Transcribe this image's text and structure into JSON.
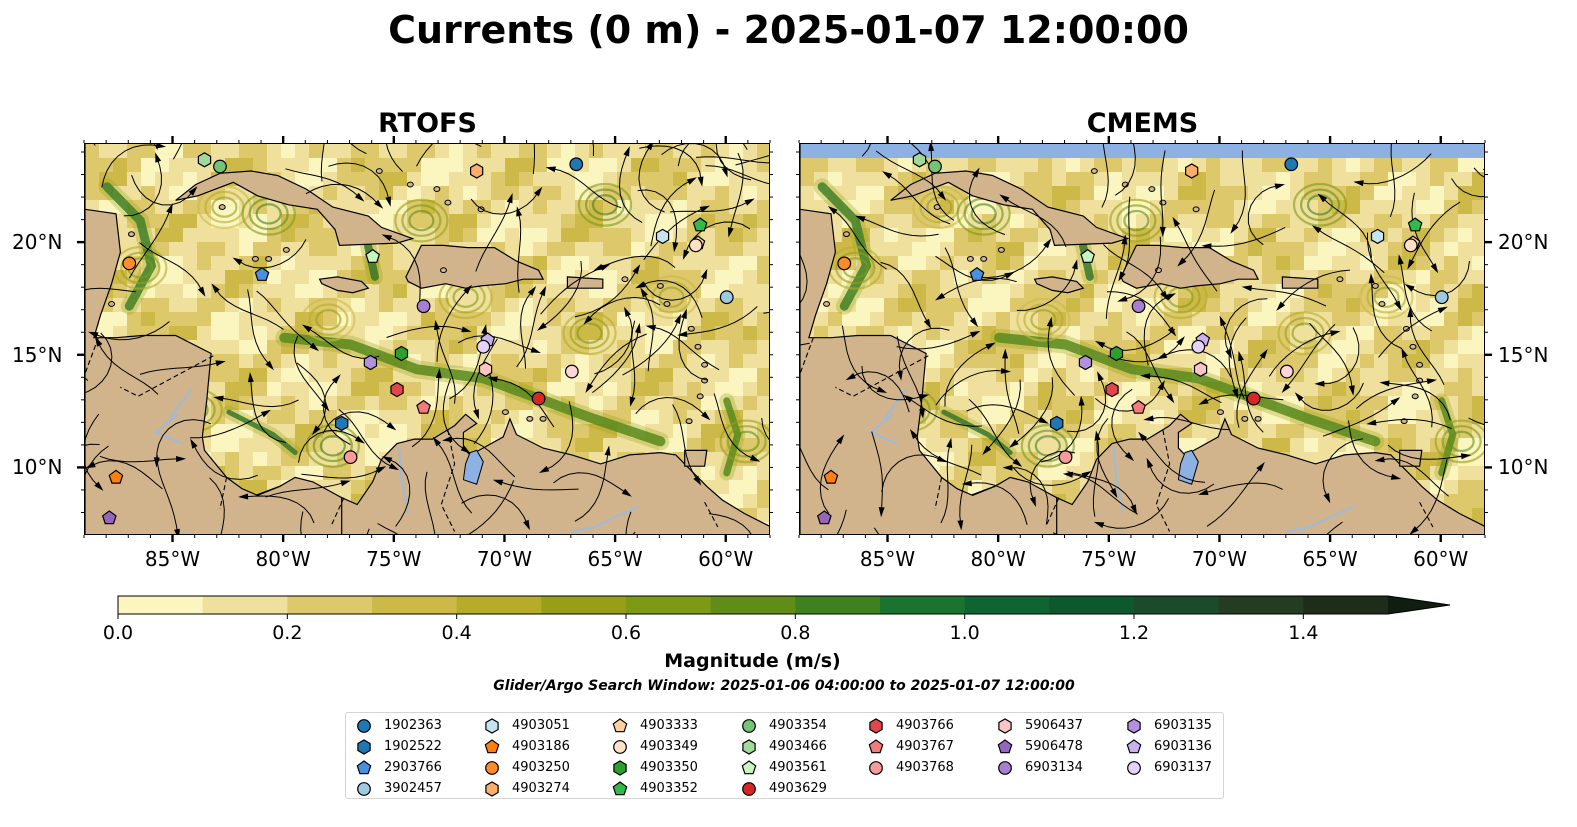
{
  "title": "Currents (0 m) - 2025-01-07 12:00:00",
  "panels": [
    {
      "title": "RTOFS",
      "key": "rtofs"
    },
    {
      "title": "CMEMS",
      "key": "cmems"
    }
  ],
  "axes": {
    "lon_labels": [
      "85°W",
      "80°W",
      "75°W",
      "70°W",
      "65°W",
      "60°W"
    ],
    "lon_values": [
      -85,
      -80,
      -75,
      -70,
      -65,
      -60
    ],
    "lat_labels": [
      "20°N",
      "15°N",
      "10°N"
    ],
    "lat_values": [
      20,
      15,
      10
    ],
    "lon_range": [
      -89,
      -58
    ],
    "lat_range": [
      7,
      24.4
    ]
  },
  "colors": {
    "land": "#d1b48c",
    "water_body": "#8eb1e3",
    "rivers": "#9fb9d8",
    "cmems_nodata": "#8eb1e3",
    "streamlines": "#000000"
  },
  "colorbar": {
    "label": "Magnitude (m/s)",
    "ticks": [
      "0.0",
      "0.2",
      "0.4",
      "0.6",
      "0.8",
      "1.0",
      "1.2",
      "1.4"
    ],
    "tick_values": [
      0,
      0.2,
      0.4,
      0.6,
      0.8,
      1.0,
      1.2,
      1.4
    ],
    "range": [
      0,
      1.5
    ],
    "extend": "max",
    "colors": [
      "#fbf5c0",
      "#efe19d",
      "#ddc96b",
      "#cdb947",
      "#b6ac2a",
      "#999e17",
      "#7e9a14",
      "#5f8d18",
      "#3f8020",
      "#1c7330",
      "#0f6531",
      "#0e582e",
      "#1b4b2a",
      "#233c22",
      "#1f2c19"
    ]
  },
  "search_window": "Glider/Argo Search Window: 2025-01-06 04:00:00 to 2025-01-07 12:00:00",
  "floats": [
    {
      "id": "1902363",
      "marker": "circle",
      "color": "#1f77b4",
      "lon": -66.8,
      "lat": 23.5
    },
    {
      "id": "1902522",
      "marker": "hexagon",
      "color": "#1f77b4",
      "lon": -77.4,
      "lat": 12.0
    },
    {
      "id": "2903766",
      "marker": "pentagon",
      "color": "#4a90e2",
      "lon": -81.0,
      "lat": 18.6
    },
    {
      "id": "3902457",
      "marker": "circle",
      "color": "#9ecae1",
      "lon": -60.0,
      "lat": 17.6
    },
    {
      "id": "4903051",
      "marker": "hexagon",
      "color": "#c6e3f2",
      "lon": -62.9,
      "lat": 20.3
    },
    {
      "id": "4903186",
      "marker": "pentagon",
      "color": "#ff7f0e",
      "lon": -87.6,
      "lat": 9.6
    },
    {
      "id": "4903250",
      "marker": "circle",
      "color": "#ff8c2a",
      "lon": -87.0,
      "lat": 19.1
    },
    {
      "id": "4903274",
      "marker": "hexagon",
      "color": "#fdae6b",
      "lon": -71.3,
      "lat": 23.2
    },
    {
      "id": "4903333",
      "marker": "pentagon",
      "color": "#fdd0a2",
      "lon": -61.3,
      "lat": 20.0
    },
    {
      "id": "4903349",
      "marker": "circle",
      "color": "#fde0c5",
      "lon": -61.4,
      "lat": 19.9
    },
    {
      "id": "4903350",
      "marker": "hexagon",
      "color": "#2ca02c",
      "lon": -74.7,
      "lat": 15.1
    },
    {
      "id": "4903352",
      "marker": "pentagon",
      "color": "#31b94a",
      "lon": -61.2,
      "lat": 20.8
    },
    {
      "id": "4903354",
      "marker": "circle",
      "color": "#74c476",
      "lon": -82.9,
      "lat": 23.4
    },
    {
      "id": "4903466",
      "marker": "hexagon",
      "color": "#a1d99b",
      "lon": -83.6,
      "lat": 23.7
    },
    {
      "id": "4903561",
      "marker": "pentagon",
      "color": "#c7f5c0",
      "lon": -76.0,
      "lat": 19.4
    },
    {
      "id": "4903629",
      "marker": "circle",
      "color": "#d62728",
      "lon": -68.5,
      "lat": 13.1
    },
    {
      "id": "4903766",
      "marker": "hexagon",
      "color": "#e0474c",
      "lon": -74.9,
      "lat": 13.5
    },
    {
      "id": "4903767",
      "marker": "pentagon",
      "color": "#f27b7b",
      "lon": -73.7,
      "lat": 12.7
    },
    {
      "id": "4903768",
      "marker": "circle",
      "color": "#f79b9b",
      "lon": -77.0,
      "lat": 10.5
    },
    {
      "id": "5906437",
      "marker": "hexagon",
      "color": "#fcc5c5",
      "lon": -70.9,
      "lat": 14.4
    },
    {
      "id": "5906478",
      "marker": "pentagon",
      "color": "#9467bd",
      "lon": -87.9,
      "lat": 7.8
    },
    {
      "id": "6903134",
      "marker": "circle",
      "color": "#a67fd0",
      "lon": -73.7,
      "lat": 17.2
    },
    {
      "id": "6903135",
      "marker": "hexagon",
      "color": "#b291e0",
      "lon": -76.1,
      "lat": 14.7
    },
    {
      "id": "6903136",
      "marker": "pentagon",
      "color": "#cab2ee",
      "lon": -70.8,
      "lat": 15.7
    },
    {
      "id": "6903137",
      "marker": "circle",
      "color": "#e4d2fb",
      "lon": -71.0,
      "lat": 15.4
    },
    {
      "id": "5906437b",
      "marker": "circle",
      "color": "#fcd5d5",
      "lon": -67.0,
      "lat": 14.3
    }
  ],
  "legend_ids": [
    [
      "1902363",
      "1902522",
      "2903766",
      "3902457"
    ],
    [
      "4903051",
      "4903186",
      "4903250",
      "4903274"
    ],
    [
      "4903333",
      "4903349",
      "4903350",
      "4903352"
    ],
    [
      "4903354",
      "4903466",
      "4903561",
      "4903629"
    ],
    [
      "4903766",
      "4903767",
      "4903768"
    ],
    [
      "5906437",
      "5906478",
      "6903134"
    ],
    [
      "6903135",
      "6903136",
      "6903137"
    ]
  ]
}
